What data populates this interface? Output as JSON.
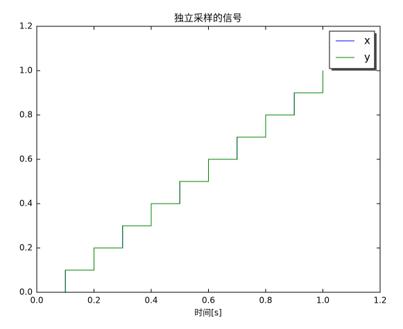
{
  "chart_data": {
    "type": "line",
    "drawstyle": "steps-post",
    "title": "独立采样的信号",
    "xlabel": "时间[s]",
    "x": [
      0.1,
      0.1,
      0.2,
      0.3,
      0.4,
      0.5,
      0.6,
      0.7,
      0.8,
      0.9,
      1.0
    ],
    "series": [
      {
        "name": "x",
        "color": "#0000ff",
        "values": [
          0,
          0.1,
          0.2,
          0.3,
          0.4,
          0.5,
          0.6,
          0.7,
          0.8,
          0.9,
          1.0
        ]
      },
      {
        "name": "y",
        "color": "#008000",
        "values": [
          0,
          0.1,
          0.2,
          0.3,
          0.4,
          0.5,
          0.6,
          0.7,
          0.8,
          0.9,
          1.0
        ]
      }
    ],
    "xlim": [
      0,
      1.2
    ],
    "xticks": [
      {
        "value": 0,
        "label": "0.0"
      },
      0.2,
      0.4,
      0.6,
      0.8,
      {
        "value": 1,
        "label": "1.0"
      },
      1.2
    ],
    "ylim": [
      0,
      1.2
    ],
    "yticks": [
      {
        "value": 0,
        "label": "0.0"
      },
      0.2,
      0.4,
      0.6,
      0.8,
      {
        "value": 1,
        "label": "1.0"
      },
      1.2
    ],
    "legend": "upper right",
    "grid": false
  }
}
